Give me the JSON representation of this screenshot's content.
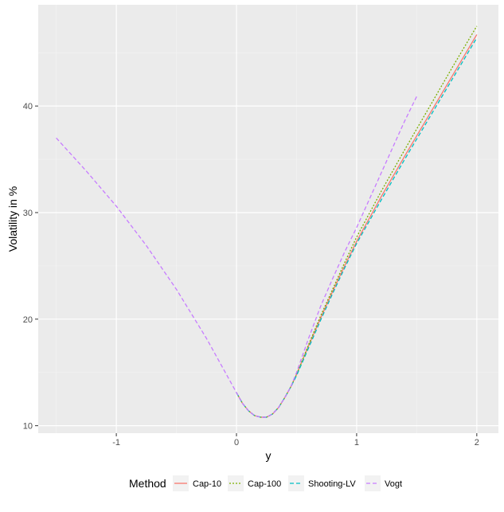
{
  "chart_data": {
    "type": "line",
    "xlabel": "y",
    "ylabel": "Volatility in %",
    "xlim": [
      -1.65,
      2.18
    ],
    "ylim": [
      9.3,
      49.5
    ],
    "x_ticks": [
      -1,
      0,
      1,
      2
    ],
    "x_tick_labels": [
      "-1",
      "0",
      "1",
      "2"
    ],
    "y_ticks": [
      10,
      20,
      30,
      40
    ],
    "y_tick_labels": [
      "10",
      "20",
      "30",
      "40"
    ],
    "grid": true,
    "background": "#ebebeb",
    "legend": {
      "title": "Method",
      "position": "bottom",
      "entries": [
        "Cap-10",
        "Cap-100",
        "Shooting-LV",
        "Vogt"
      ]
    },
    "series": [
      {
        "name": "Cap-10",
        "color": "#f8766d",
        "dash": "solid",
        "x": [
          0.0,
          0.05,
          0.1,
          0.15,
          0.2,
          0.25,
          0.3,
          0.35,
          0.4,
          0.45,
          0.5,
          0.6,
          0.7,
          0.8,
          0.9,
          1.0,
          1.2,
          1.4,
          1.6,
          1.8,
          2.0
        ],
        "y": [
          13.1,
          12.1,
          11.4,
          10.95,
          10.8,
          10.8,
          11.1,
          11.7,
          12.6,
          13.6,
          14.8,
          17.5,
          20.1,
          22.6,
          25.0,
          27.3,
          31.4,
          35.3,
          39.1,
          42.9,
          46.7
        ]
      },
      {
        "name": "Cap-100",
        "color": "#7cae00",
        "dash": "dotted",
        "x": [
          0.0,
          0.05,
          0.1,
          0.15,
          0.2,
          0.25,
          0.3,
          0.35,
          0.4,
          0.45,
          0.5,
          0.6,
          0.7,
          0.8,
          0.9,
          1.0,
          1.2,
          1.4,
          1.6,
          1.8,
          2.0
        ],
        "y": [
          13.1,
          12.1,
          11.4,
          10.95,
          10.8,
          10.8,
          11.1,
          11.7,
          12.6,
          13.6,
          14.8,
          17.6,
          20.3,
          22.8,
          25.3,
          27.7,
          31.9,
          35.9,
          39.8,
          43.7,
          47.5
        ]
      },
      {
        "name": "Shooting-LV",
        "color": "#00bfc4",
        "dash": "dashed",
        "x": [
          0.0,
          0.05,
          0.1,
          0.15,
          0.2,
          0.25,
          0.3,
          0.35,
          0.4,
          0.45,
          0.5,
          0.6,
          0.7,
          0.8,
          0.9,
          1.0,
          1.2,
          1.4,
          1.6,
          1.8,
          2.0
        ],
        "y": [
          13.1,
          12.1,
          11.4,
          10.95,
          10.8,
          10.8,
          11.1,
          11.7,
          12.6,
          13.6,
          14.7,
          17.3,
          19.9,
          22.4,
          24.8,
          27.1,
          31.1,
          35.0,
          38.8,
          42.6,
          46.4
        ]
      },
      {
        "name": "Vogt",
        "color": "#c77cff",
        "dash": "dashed",
        "x": [
          -1.5,
          -1.25,
          -1.0,
          -0.75,
          -0.5,
          -0.25,
          0.0,
          0.05,
          0.1,
          0.15,
          0.2,
          0.25,
          0.3,
          0.35,
          0.4,
          0.45,
          0.5,
          0.6,
          0.7,
          0.8,
          0.9,
          1.0,
          1.1,
          1.2,
          1.3,
          1.4,
          1.5
        ],
        "y": [
          37.0,
          33.9,
          30.6,
          26.9,
          22.8,
          18.2,
          13.1,
          12.1,
          11.4,
          10.95,
          10.8,
          10.8,
          11.1,
          11.7,
          12.6,
          13.6,
          15.0,
          18.2,
          21.2,
          23.8,
          26.3,
          28.6,
          31.1,
          33.6,
          36.1,
          38.6,
          40.9
        ]
      }
    ]
  }
}
